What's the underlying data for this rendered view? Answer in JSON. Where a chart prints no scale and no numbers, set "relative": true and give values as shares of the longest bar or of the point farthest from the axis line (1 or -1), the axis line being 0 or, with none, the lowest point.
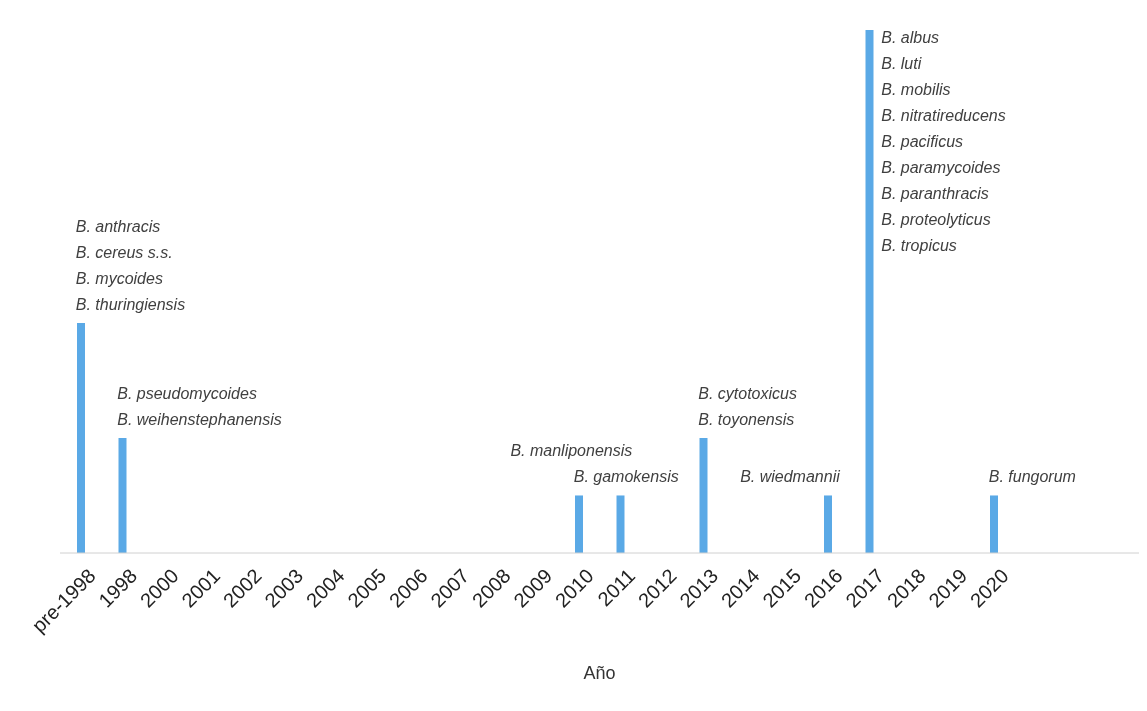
{
  "chart_data": {
    "type": "bar",
    "relative": true,
    "xlabel": "Año",
    "color": "#5aa9e6",
    "categories": [
      "pre-1998",
      "1998",
      "2000",
      "2001",
      "2002",
      "2003",
      "2004",
      "2005",
      "2006",
      "2007",
      "2008",
      "2009",
      "2010",
      "2011",
      "2012",
      "2013",
      "2014",
      "2015",
      "2016",
      "2017",
      "2018",
      "2019",
      "2020",
      null,
      null,
      null
    ],
    "values": [
      0.44,
      0.22,
      0,
      0,
      0,
      0,
      0,
      0,
      0,
      0,
      0,
      0,
      0.11,
      0.11,
      0,
      0.22,
      0,
      0,
      0.11,
      1,
      0,
      0,
      0.11,
      0,
      0,
      0
    ],
    "annotations": [
      {
        "text": "B. anthracis\nB. cereus s.s.\nB. mycoides\nB. thuringiensis",
        "x": "pre-1998",
        "y": 0.44
      },
      {
        "text": "B. pseudomycoides\nB. weihenstephanensis",
        "x": "1998",
        "y": 0.22
      },
      {
        "text": "B. gamokensis",
        "x": "2010",
        "y": 0.11
      },
      {
        "text": "B. manliponensis",
        "x": "2011",
        "y": 0.11
      },
      {
        "text": "B. cytotoxicus\nB. toyonensis",
        "x": "2013",
        "y": 0.22
      },
      {
        "text": "B. wiedmannii",
        "x": "2016",
        "y": 0.11
      },
      {
        "text": "B. albus\nB. luti",
        "x": "2017",
        "y": 1
      },
      "B. mobilis\nB. nitratireducens\nB. pacificus\nB. paramycoides\nB. paranthracis\nB. proteolyticus\nB. tropicus",
      {
        "text": "B. fungorum",
        "x": "2020",
        "y": 0.11
      }
    ]
  }
}
